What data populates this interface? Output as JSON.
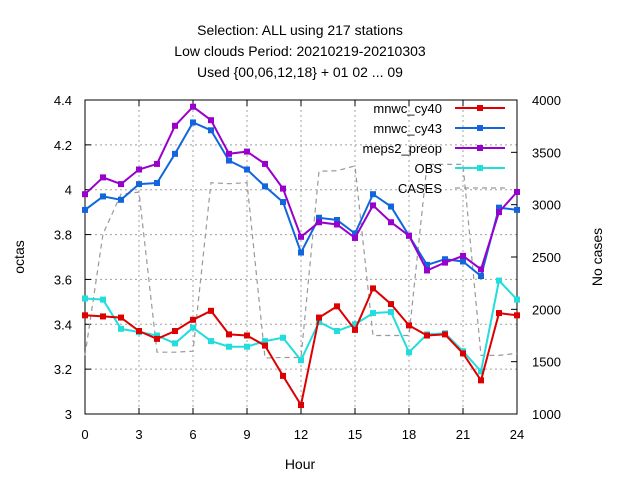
{
  "chart_data": {
    "type": "line",
    "title_lines": [
      "Selection: ALL using   217 stations",
      "Low clouds   Period: 20210219-20210303",
      "Used {00,06,12,18} + 01 02 ... 09"
    ],
    "xlabel": "Hour",
    "ylabel": "octas",
    "y2label": "No cases",
    "xlim": [
      0,
      24
    ],
    "ylim": [
      3,
      4.4
    ],
    "y2lim": [
      1000,
      4000
    ],
    "xticks": [
      "0",
      "3",
      "6",
      "9",
      "12",
      "15",
      "18",
      "21",
      "24"
    ],
    "yticks": [
      "3",
      "3.2",
      "3.4",
      "3.6",
      "3.8",
      "4",
      "4.2",
      "4.4"
    ],
    "y2ticks": [
      "1000",
      "1500",
      "2000",
      "2500",
      "3000",
      "3500",
      "4000"
    ],
    "grid": true,
    "legend_position": "top-right",
    "x": [
      0,
      1,
      2,
      3,
      4,
      5,
      6,
      7,
      8,
      9,
      10,
      11,
      12,
      13,
      14,
      15,
      16,
      17,
      18,
      19,
      20,
      21,
      22,
      23,
      24
    ],
    "series": [
      {
        "name": "mnwc_cy40",
        "color": "#dd0000",
        "marker": "square",
        "axis": "y",
        "values": [
          3.44,
          3.435,
          3.43,
          3.37,
          3.335,
          3.37,
          3.42,
          3.46,
          3.355,
          3.35,
          3.305,
          3.17,
          3.04,
          3.43,
          3.48,
          3.375,
          3.56,
          3.49,
          3.395,
          3.35,
          3.355,
          3.27,
          3.15,
          3.45,
          3.44
        ]
      },
      {
        "name": "mnwc_cy43",
        "color": "#1166dd",
        "marker": "square",
        "axis": "y",
        "values": [
          3.91,
          3.97,
          3.955,
          4.025,
          4.03,
          4.16,
          4.3,
          4.265,
          4.13,
          4.09,
          4.015,
          3.945,
          3.72,
          3.875,
          3.865,
          3.805,
          3.98,
          3.925,
          3.795,
          3.665,
          3.69,
          3.68,
          3.615,
          3.92,
          3.91
        ]
      },
      {
        "name": "meps2_preop",
        "color": "#9900cc",
        "marker": "square",
        "axis": "y",
        "values": [
          3.98,
          4.055,
          4.025,
          4.09,
          4.115,
          4.285,
          4.37,
          4.31,
          4.16,
          4.17,
          4.115,
          4.005,
          3.79,
          3.855,
          3.845,
          3.785,
          3.93,
          3.855,
          3.795,
          3.64,
          3.675,
          3.705,
          3.645,
          3.9,
          3.99
        ]
      },
      {
        "name": "OBS",
        "color": "#22dddd",
        "marker": "square",
        "axis": "y",
        "values": [
          3.515,
          3.51,
          3.38,
          3.365,
          3.35,
          3.315,
          3.385,
          3.325,
          3.3,
          3.3,
          3.325,
          3.34,
          3.24,
          3.41,
          3.37,
          3.4,
          3.45,
          3.455,
          3.275,
          3.355,
          3.36,
          3.28,
          3.19,
          3.595,
          3.51
        ]
      },
      {
        "name": "CASES",
        "color": "#999999",
        "dash": true,
        "axis": "y2",
        "values": [
          1560,
          2720,
          3100,
          3120,
          1590,
          1590,
          1600,
          3210,
          3200,
          3210,
          1535,
          1540,
          1540,
          3320,
          3325,
          3370,
          1750,
          1750,
          1750,
          3385,
          3385,
          3385,
          1560,
          1560,
          1580
        ]
      }
    ]
  }
}
